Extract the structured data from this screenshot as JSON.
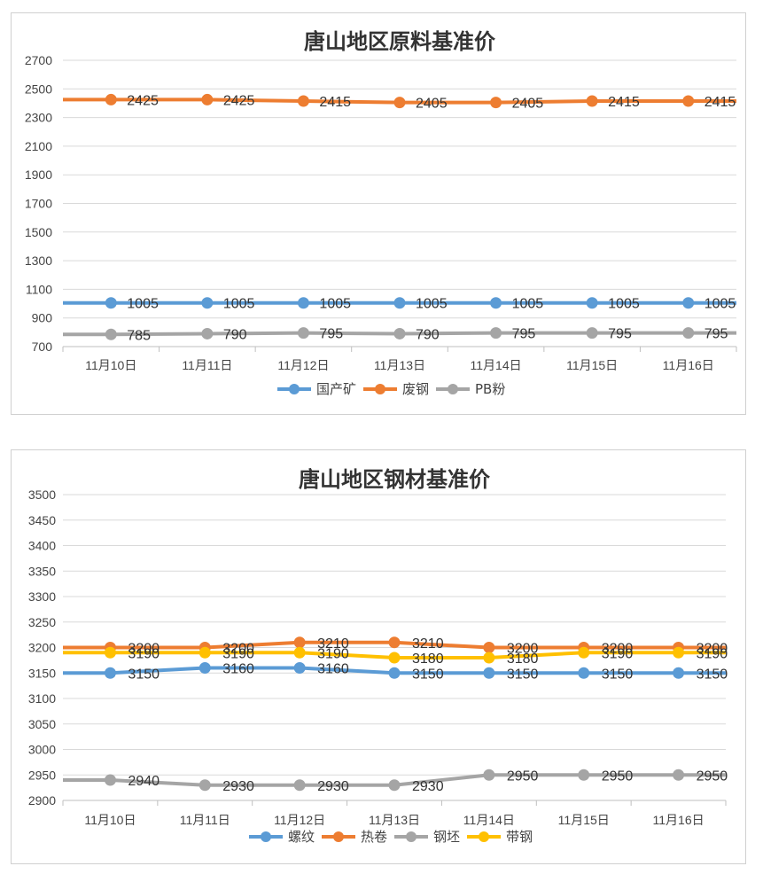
{
  "chart_data": [
    {
      "type": "line",
      "title": "唐山地区原料基准价",
      "categories": [
        "11月10日",
        "11月11日",
        "11月12日",
        "11月13日",
        "11月14日",
        "11月15日",
        "11月16日"
      ],
      "ylim": [
        700,
        2700
      ],
      "ystep": 200,
      "grid": true,
      "legend_position": "bottom",
      "series": [
        {
          "name": "国产矿",
          "color": "#5B9BD5",
          "values": [
            1005,
            1005,
            1005,
            1005,
            1005,
            1005,
            1005
          ],
          "labels": [
            "1005",
            "1005",
            "1005",
            "1005",
            "1005",
            "1005",
            "1005"
          ]
        },
        {
          "name": "废钢",
          "color": "#ED7D31",
          "values": [
            2425,
            2425,
            2415,
            2405,
            2405,
            2415,
            2415
          ],
          "labels": [
            "2425",
            "2425",
            "2415",
            "2405",
            "2405",
            "2415",
            "2415"
          ]
        },
        {
          "name": "PB粉",
          "color": "#A5A5A5",
          "values": [
            785,
            790,
            795,
            790,
            795,
            795,
            795
          ],
          "labels": [
            "785",
            "790",
            "795",
            "790",
            "795",
            "795",
            "795"
          ]
        }
      ]
    },
    {
      "type": "line",
      "title": "唐山地区钢材基准价",
      "categories": [
        "11月10日",
        "11月11日",
        "11月12日",
        "11月13日",
        "11月14日",
        "11月15日",
        "11月16日"
      ],
      "ylim": [
        2900,
        3500
      ],
      "ystep": 50,
      "grid": true,
      "legend_position": "bottom",
      "series": [
        {
          "name": "螺纹",
          "color": "#5B9BD5",
          "values": [
            3150,
            3160,
            3160,
            3150,
            3150,
            3150,
            3150
          ],
          "labels": [
            "3150",
            "3160",
            "3160",
            "3150",
            "3150",
            "3150",
            "3150"
          ]
        },
        {
          "name": "热卷",
          "color": "#ED7D31",
          "values": [
            3200,
            3200,
            3210,
            3210,
            3200,
            3200,
            3200
          ],
          "labels": [
            "3200",
            "3200",
            "3210",
            "3210",
            "3200",
            "3200",
            "3200"
          ]
        },
        {
          "name": "钢坯",
          "color": "#A5A5A5",
          "values": [
            2940,
            2930,
            2930,
            2930,
            2950,
            2950,
            2950
          ],
          "labels": [
            "2940",
            "2930",
            "2930",
            "2930",
            "2950",
            "2950",
            "2950"
          ]
        },
        {
          "name": "带钢",
          "color": "#FFC000",
          "values": [
            3190,
            3190,
            3190,
            3180,
            3180,
            3190,
            3190
          ],
          "labels": [
            "3190",
            "3190",
            "3190",
            "3180",
            "3180",
            "3190",
            "3190"
          ]
        }
      ]
    }
  ]
}
